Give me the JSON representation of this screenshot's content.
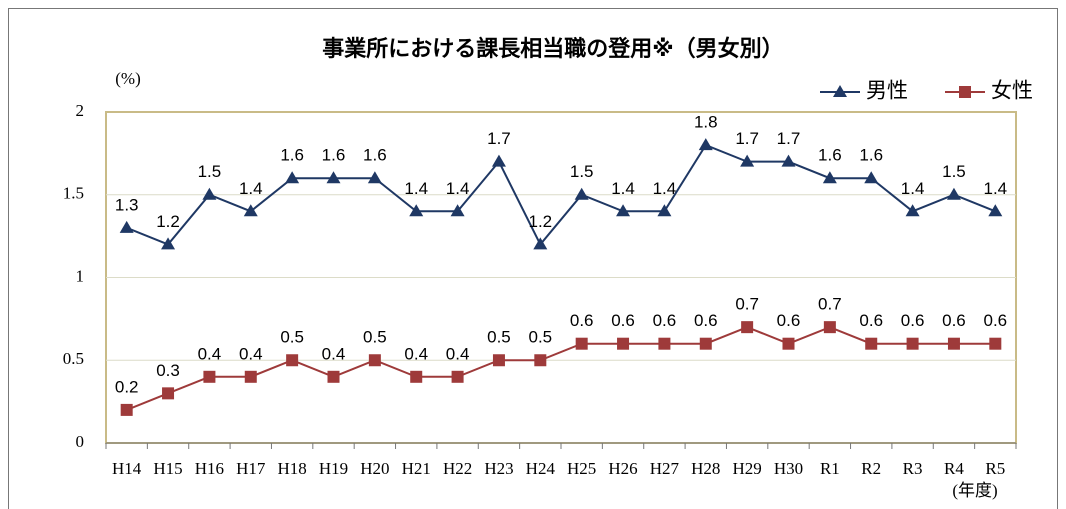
{
  "chart_data": {
    "type": "line",
    "title": "事業所における課長相当職の登用※（男女別）",
    "y_label": "(%)",
    "x_label": "(年度)",
    "categories": [
      "H14",
      "H15",
      "H16",
      "H17",
      "H18",
      "H19",
      "H20",
      "H21",
      "H22",
      "H23",
      "H24",
      "H25",
      "H26",
      "H27",
      "H28",
      "H29",
      "H30",
      "R1",
      "R2",
      "R3",
      "R4",
      "R5"
    ],
    "series": [
      {
        "name": "男性",
        "color": "#1f3864",
        "marker": "triangle",
        "values": [
          1.3,
          1.2,
          1.5,
          1.4,
          1.6,
          1.6,
          1.6,
          1.4,
          1.4,
          1.7,
          1.2,
          1.5,
          1.4,
          1.4,
          1.8,
          1.7,
          1.7,
          1.6,
          1.6,
          1.4,
          1.5,
          1.4
        ]
      },
      {
        "name": "女性",
        "color": "#9e3a3a",
        "marker": "square",
        "values": [
          0.2,
          0.3,
          0.4,
          0.4,
          0.5,
          0.4,
          0.5,
          0.4,
          0.4,
          0.5,
          0.5,
          0.6,
          0.6,
          0.6,
          0.6,
          0.7,
          0.6,
          0.7,
          0.6,
          0.6,
          0.6,
          0.6
        ]
      }
    ],
    "ylim": [
      0,
      2
    ],
    "yticks": [
      0,
      0.5,
      1,
      1.5,
      2
    ],
    "grid": true,
    "legend": "top-right"
  }
}
